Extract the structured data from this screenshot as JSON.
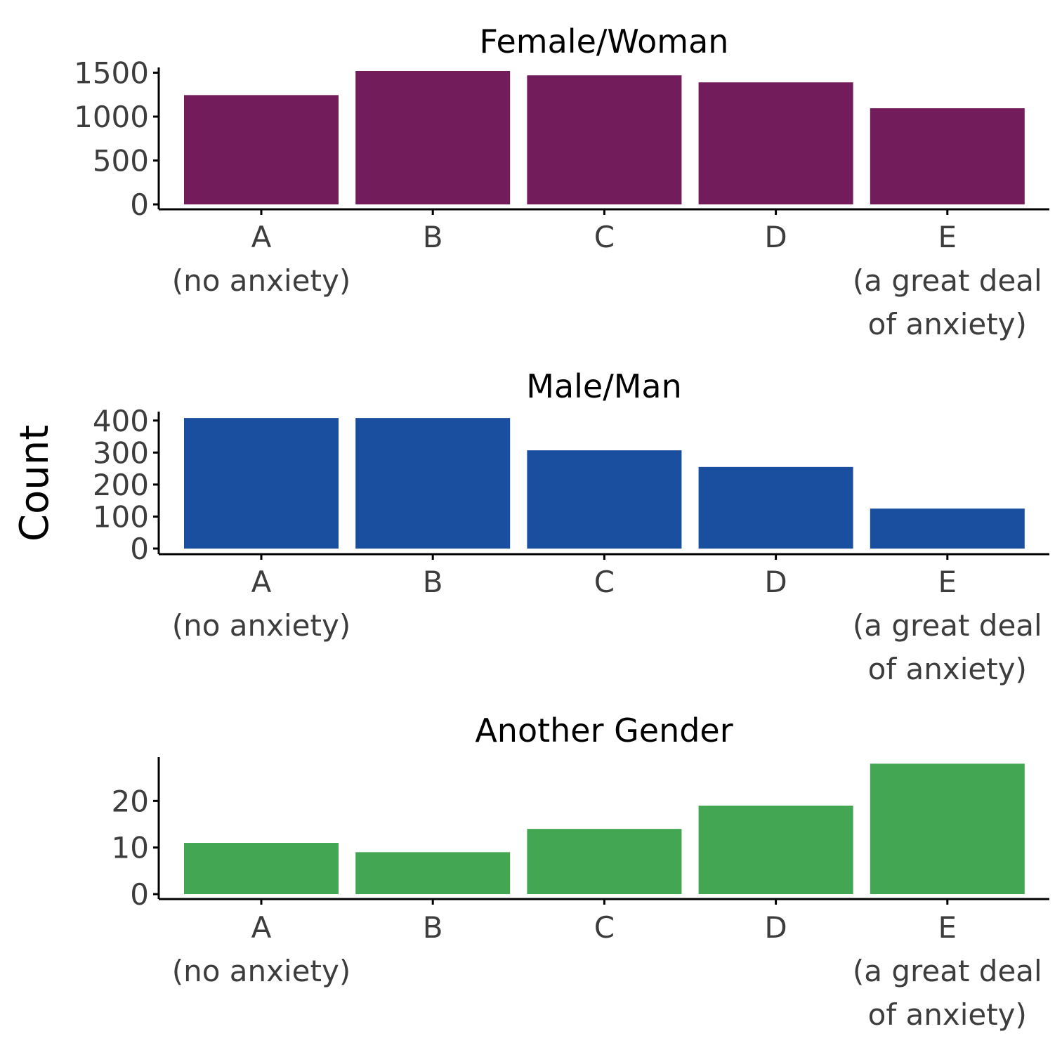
{
  "chart_data": [
    {
      "type": "bar",
      "title": "Female/Woman",
      "categories": [
        "A\n(no anxiety)",
        "B",
        "C",
        "D",
        "E\n(a great deal\nof anxiety)"
      ],
      "values": [
        1245,
        1520,
        1470,
        1390,
        1095
      ],
      "ylim": [
        0,
        1560
      ],
      "yticks": [
        0,
        500,
        1000,
        1500
      ],
      "color": "#731C5B",
      "ylabel": "",
      "xlabel": "",
      "grid": false
    },
    {
      "type": "bar",
      "title": "Male/Man",
      "categories": [
        "A\n(no anxiety)",
        "B",
        "C",
        "D",
        "E\n(a great deal\nof anxiety)"
      ],
      "values": [
        408,
        408,
        307,
        255,
        125
      ],
      "ylim": [
        0,
        428
      ],
      "yticks": [
        0,
        100,
        200,
        300,
        400
      ],
      "color": "#1A4F9F",
      "ylabel": "Count",
      "xlabel": "",
      "grid": false
    },
    {
      "type": "bar",
      "title": "Another Gender",
      "categories": [
        "A\n(no anxiety)",
        "B",
        "C",
        "D",
        "E\n(a great deal\nof anxiety)"
      ],
      "values": [
        11,
        9,
        14,
        19,
        28
      ],
      "ylim": [
        0,
        29.4
      ],
      "yticks": [
        0,
        10,
        20
      ],
      "color": "#42A653",
      "ylabel": "",
      "xlabel": "",
      "grid": false
    }
  ]
}
